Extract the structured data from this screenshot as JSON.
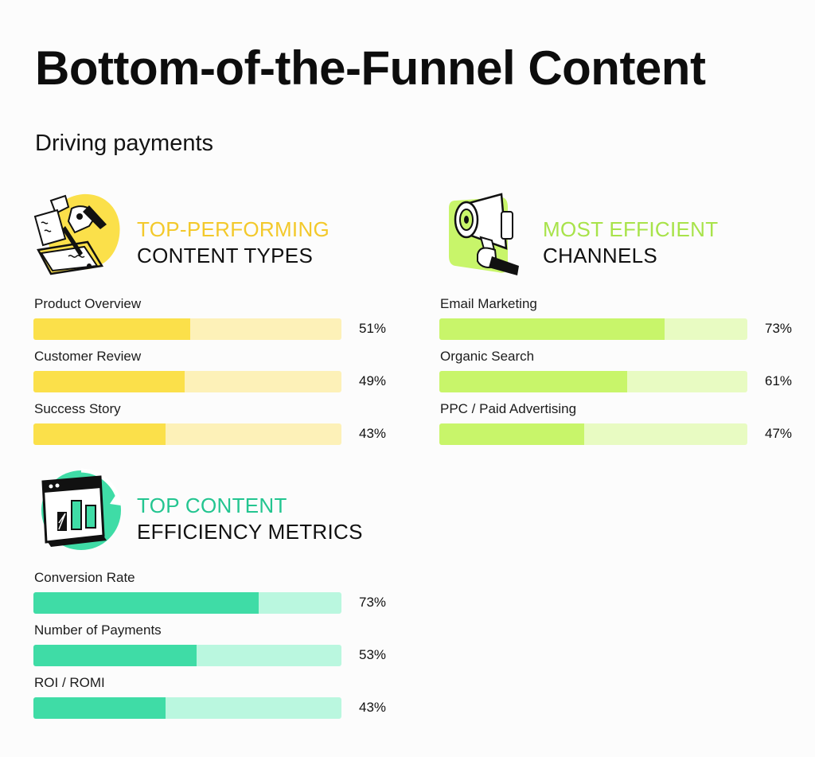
{
  "title": "Bottom-of-the-Funnel Content",
  "subtitle": "Driving payments",
  "colors": {
    "yellow": "#fbe04a",
    "yellow_light": "#fdf1b8",
    "lime": "#c8f56a",
    "lime_light": "#e8fbc2",
    "green": "#3fdca6",
    "green_light": "#baf7df",
    "yellow_head": "#f3c92b",
    "lime_head": "#a8e34a",
    "green_head": "#23c590"
  },
  "sections": [
    {
      "icon": "writing-hand-icon",
      "heading_accent": "TOP-PERFORMING",
      "heading_main": "CONTENT TYPES"
    },
    {
      "icon": "megaphone-icon",
      "heading_accent": "MOST EFFICIENT",
      "heading_main": "CHANNELS"
    },
    {
      "icon": "bar-chart-window-icon",
      "heading_accent": "TOP CONTENT",
      "heading_main": "EFFICIENCY METRICS"
    }
  ],
  "chart_data": [
    {
      "type": "bar",
      "categories": [
        "Product Overview",
        "Customer Review",
        "Success Story"
      ],
      "values": [
        51,
        49,
        43
      ],
      "value_labels": [
        "51%",
        "49%",
        "43%"
      ],
      "ylim": [
        0,
        100
      ]
    },
    {
      "type": "bar",
      "categories": [
        "Email Marketing",
        "Organic Search",
        "PPC / Paid Advertising"
      ],
      "values": [
        73,
        61,
        47
      ],
      "value_labels": [
        "73%",
        "61%",
        "47%"
      ],
      "ylim": [
        0,
        100
      ]
    },
    {
      "type": "bar",
      "categories": [
        "Conversion Rate",
        "Number of Payments",
        "ROI / ROMI"
      ],
      "values": [
        73,
        53,
        43
      ],
      "value_labels": [
        "73%",
        "53%",
        "43%"
      ],
      "ylim": [
        0,
        100
      ]
    }
  ]
}
